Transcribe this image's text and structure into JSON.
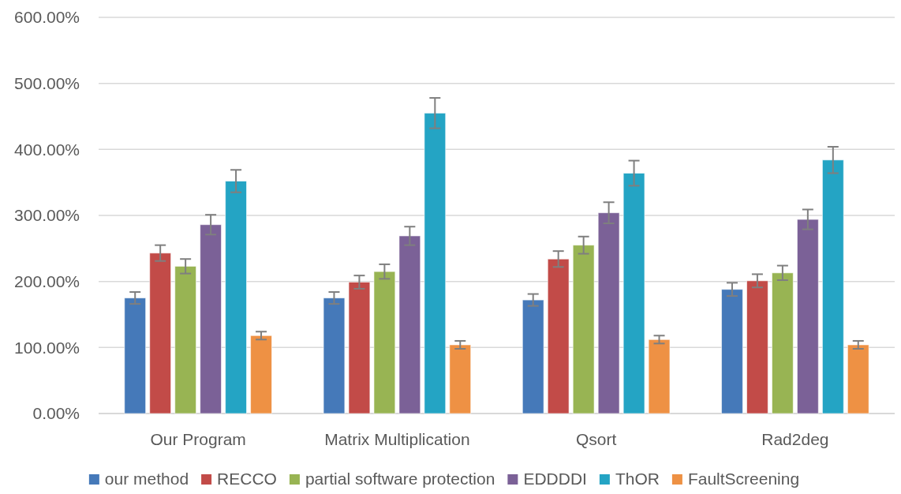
{
  "chart_data": {
    "type": "bar",
    "categories": [
      "Our Program",
      "Matrix Multiplication",
      "Qsort",
      "Rad2deg"
    ],
    "series": [
      {
        "name": "our method",
        "color": "#4579b9",
        "values": [
          175,
          175,
          172,
          188
        ],
        "errors": [
          9,
          9,
          9,
          10
        ]
      },
      {
        "name": "RECCO",
        "color": "#c24b48",
        "values": [
          243,
          199,
          234,
          201
        ],
        "errors": [
          12,
          10,
          12,
          10
        ]
      },
      {
        "name": "partial software protection",
        "color": "#98b453",
        "values": [
          223,
          215,
          255,
          213
        ],
        "errors": [
          11,
          11,
          13,
          11
        ]
      },
      {
        "name": "EDDDDI",
        "color": "#7b6197",
        "values": [
          286,
          269,
          304,
          294
        ],
        "errors": [
          15,
          14,
          16,
          15
        ]
      },
      {
        "name": "ThOR",
        "color": "#24a4c4",
        "values": [
          352,
          455,
          364,
          384
        ],
        "errors": [
          17,
          23,
          19,
          20
        ]
      },
      {
        "name": "FaultScreening",
        "color": "#ee9144",
        "values": [
          118,
          104,
          112,
          104
        ],
        "errors": [
          6,
          6,
          6,
          6
        ]
      }
    ],
    "ylim": [
      0,
      600
    ],
    "yticks": [
      {
        "value": 0,
        "label": "0.00%"
      },
      {
        "value": 100,
        "label": "100.00%"
      },
      {
        "value": 200,
        "label": "200.00%"
      },
      {
        "value": 300,
        "label": "300.00%"
      },
      {
        "value": 400,
        "label": "400.00%"
      },
      {
        "value": 500,
        "label": "500.00%"
      },
      {
        "value": 600,
        "label": "600.00%"
      }
    ],
    "grid": "y",
    "legend": "bottom"
  }
}
